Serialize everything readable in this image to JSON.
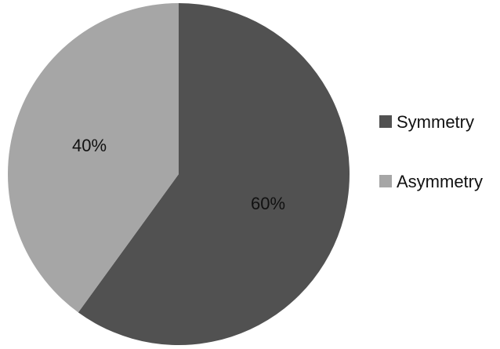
{
  "chart_data": {
    "type": "pie",
    "title": "",
    "start_angle_deg": 0,
    "direction": "clockwise",
    "legend_position": "right",
    "slices": [
      {
        "label": "Symmetry",
        "value": 60,
        "data_label": "60%",
        "color": "#515151"
      },
      {
        "label": "Asymmetry",
        "value": 40,
        "data_label": "40%",
        "color": "#a6a6a6"
      }
    ]
  }
}
